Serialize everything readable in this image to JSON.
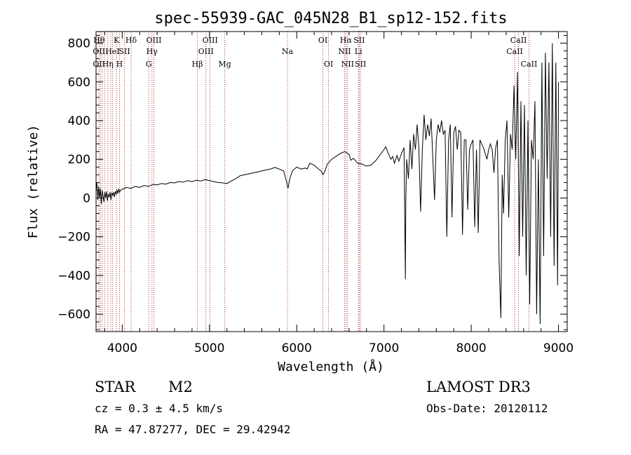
{
  "chart_data": {
    "type": "line",
    "title": "spec-55939-GAC_045N28_B1_sp12-152.fits",
    "xlabel": "Wavelength (Å)",
    "ylabel": "Flux (relative)",
    "xlim": [
      3700,
      9100
    ],
    "ylim": [
      -690,
      860
    ],
    "x_ticks": [
      4000,
      5000,
      6000,
      7000,
      8000,
      9000
    ],
    "x_tick_labels": [
      "4000",
      "5000",
      "6000",
      "7000",
      "8000",
      "9000"
    ],
    "y_ticks": [
      -600,
      -400,
      -200,
      0,
      200,
      400,
      600,
      800
    ],
    "y_tick_labels": [
      "−600",
      "−400",
      "−200",
      "0",
      "200",
      "400",
      "600",
      "800"
    ],
    "grid": false,
    "series": [
      {
        "points": [
          [
            3700,
            40
          ],
          [
            3710,
            80
          ],
          [
            3720,
            -10
          ],
          [
            3730,
            60
          ],
          [
            3740,
            0
          ],
          [
            3750,
            50
          ],
          [
            3760,
            -30
          ],
          [
            3770,
            40
          ],
          [
            3780,
            10
          ],
          [
            3790,
            -20
          ],
          [
            3800,
            30
          ],
          [
            3810,
            0
          ],
          [
            3820,
            35
          ],
          [
            3830,
            -15
          ],
          [
            3840,
            20
          ],
          [
            3850,
            5
          ],
          [
            3860,
            30
          ],
          [
            3870,
            -10
          ],
          [
            3880,
            25
          ],
          [
            3890,
            15
          ],
          [
            3900,
            30
          ],
          [
            3910,
            5
          ],
          [
            3920,
            35
          ],
          [
            3930,
            20
          ],
          [
            3940,
            40
          ],
          [
            3950,
            25
          ],
          [
            3960,
            45
          ],
          [
            3970,
            30
          ],
          [
            3980,
            40
          ],
          [
            4000,
            45
          ],
          [
            4050,
            55
          ],
          [
            4100,
            50
          ],
          [
            4150,
            60
          ],
          [
            4200,
            55
          ],
          [
            4250,
            65
          ],
          [
            4300,
            60
          ],
          [
            4350,
            70
          ],
          [
            4400,
            68
          ],
          [
            4450,
            75
          ],
          [
            4500,
            72
          ],
          [
            4550,
            80
          ],
          [
            4600,
            78
          ],
          [
            4650,
            85
          ],
          [
            4700,
            82
          ],
          [
            4750,
            90
          ],
          [
            4800,
            85
          ],
          [
            4850,
            92
          ],
          [
            4900,
            88
          ],
          [
            4950,
            95
          ],
          [
            5000,
            90
          ],
          [
            5050,
            85
          ],
          [
            5100,
            80
          ],
          [
            5150,
            78
          ],
          [
            5200,
            75
          ],
          [
            5250,
            88
          ],
          [
            5300,
            100
          ],
          [
            5350,
            115
          ],
          [
            5400,
            120
          ],
          [
            5450,
            125
          ],
          [
            5500,
            130
          ],
          [
            5550,
            135
          ],
          [
            5600,
            140
          ],
          [
            5650,
            145
          ],
          [
            5700,
            150
          ],
          [
            5750,
            158
          ],
          [
            5800,
            150
          ],
          [
            5850,
            140
          ],
          [
            5880,
            90
          ],
          [
            5900,
            50
          ],
          [
            5920,
            100
          ],
          [
            5950,
            140
          ],
          [
            6000,
            160
          ],
          [
            6050,
            150
          ],
          [
            6100,
            155
          ],
          [
            6120,
            150
          ],
          [
            6150,
            180
          ],
          [
            6200,
            170
          ],
          [
            6250,
            150
          ],
          [
            6280,
            140
          ],
          [
            6300,
            120
          ],
          [
            6320,
            135
          ],
          [
            6350,
            175
          ],
          [
            6400,
            200
          ],
          [
            6450,
            215
          ],
          [
            6500,
            230
          ],
          [
            6550,
            240
          ],
          [
            6600,
            225
          ],
          [
            6620,
            195
          ],
          [
            6650,
            205
          ],
          [
            6700,
            180
          ],
          [
            6750,
            175
          ],
          [
            6800,
            165
          ],
          [
            6850,
            170
          ],
          [
            6900,
            190
          ],
          [
            6950,
            220
          ],
          [
            7000,
            250
          ],
          [
            7020,
            265
          ],
          [
            7050,
            230
          ],
          [
            7080,
            200
          ],
          [
            7100,
            215
          ],
          [
            7120,
            180
          ],
          [
            7150,
            220
          ],
          [
            7170,
            190
          ],
          [
            7200,
            230
          ],
          [
            7230,
            260
          ],
          [
            7245,
            -420
          ],
          [
            7250,
            -10
          ],
          [
            7260,
            200
          ],
          [
            7280,
            100
          ],
          [
            7300,
            300
          ],
          [
            7320,
            150
          ],
          [
            7340,
            330
          ],
          [
            7360,
            250
          ],
          [
            7380,
            380
          ],
          [
            7400,
            260
          ],
          [
            7420,
            -70
          ],
          [
            7440,
            250
          ],
          [
            7460,
            430
          ],
          [
            7480,
            300
          ],
          [
            7500,
            380
          ],
          [
            7520,
            320
          ],
          [
            7540,
            410
          ],
          [
            7560,
            200
          ],
          [
            7580,
            -10
          ],
          [
            7600,
            300
          ],
          [
            7620,
            380
          ],
          [
            7640,
            340
          ],
          [
            7660,
            400
          ],
          [
            7680,
            330
          ],
          [
            7700,
            350
          ],
          [
            7720,
            -200
          ],
          [
            7740,
            300
          ],
          [
            7760,
            380
          ],
          [
            7780,
            -100
          ],
          [
            7800,
            340
          ],
          [
            7820,
            370
          ],
          [
            7840,
            250
          ],
          [
            7860,
            350
          ],
          [
            7880,
            340
          ],
          [
            7900,
            -190
          ],
          [
            7920,
            300
          ],
          [
            7940,
            300
          ],
          [
            7960,
            -60
          ],
          [
            7980,
            250
          ],
          [
            8000,
            280
          ],
          [
            8020,
            300
          ],
          [
            8040,
            -150
          ],
          [
            8060,
            250
          ],
          [
            8080,
            -180
          ],
          [
            8100,
            300
          ],
          [
            8120,
            280
          ],
          [
            8140,
            260
          ],
          [
            8160,
            230
          ],
          [
            8180,
            200
          ],
          [
            8200,
            250
          ],
          [
            8220,
            280
          ],
          [
            8240,
            250
          ],
          [
            8260,
            130
          ],
          [
            8280,
            260
          ],
          [
            8300,
            300
          ],
          [
            8320,
            -330
          ],
          [
            8340,
            -620
          ],
          [
            8355,
            120
          ],
          [
            8370,
            -80
          ],
          [
            8390,
            300
          ],
          [
            8410,
            400
          ],
          [
            8430,
            -100
          ],
          [
            8450,
            330
          ],
          [
            8470,
            250
          ],
          [
            8490,
            580
          ],
          [
            8510,
            200
          ],
          [
            8530,
            650
          ],
          [
            8550,
            -300
          ],
          [
            8570,
            500
          ],
          [
            8590,
            -200
          ],
          [
            8610,
            480
          ],
          [
            8630,
            -400
          ],
          [
            8650,
            400
          ],
          [
            8670,
            -550
          ],
          [
            8690,
            300
          ],
          [
            8710,
            200
          ],
          [
            8730,
            500
          ],
          [
            8750,
            -600
          ],
          [
            8770,
            200
          ],
          [
            8790,
            -650
          ],
          [
            8810,
            700
          ],
          [
            8830,
            -300
          ],
          [
            8850,
            750
          ],
          [
            8870,
            100
          ],
          [
            8890,
            700
          ],
          [
            8910,
            -200
          ],
          [
            8930,
            800
          ],
          [
            8950,
            -350
          ],
          [
            8970,
            700
          ],
          [
            8990,
            -450
          ],
          [
            9000,
            600
          ]
        ]
      }
    ],
    "lines": [
      {
        "x": 3734,
        "labels": [
          {
            "text": "Hθ",
            "row": 1
          },
          {
            "text": "OII",
            "row": 2
          },
          {
            "text": "OII",
            "row": 3
          }
        ]
      },
      {
        "x": 3750,
        "labels": []
      },
      {
        "x": 3771,
        "labels": []
      },
      {
        "x": 3798,
        "labels": []
      },
      {
        "x": 3835,
        "labels": [
          {
            "text": "Hη",
            "row": 3
          }
        ]
      },
      {
        "x": 3869,
        "labels": []
      },
      {
        "x": 3889,
        "labels": [
          {
            "text": "HeI",
            "row": 2
          }
        ]
      },
      {
        "x": 3934,
        "labels": [
          {
            "text": "K",
            "row": 1
          }
        ]
      },
      {
        "x": 3969,
        "labels": [
          {
            "text": "H",
            "row": 3
          }
        ]
      },
      {
        "x": 4026,
        "labels": [
          {
            "text": "SII",
            "row": 2
          }
        ]
      },
      {
        "x": 4102,
        "labels": [
          {
            "text": "Hδ",
            "row": 1
          }
        ]
      },
      {
        "x": 4304,
        "labels": [
          {
            "text": "G",
            "row": 3
          }
        ]
      },
      {
        "x": 4341,
        "labels": [
          {
            "text": "Hγ",
            "row": 2
          }
        ]
      },
      {
        "x": 4363,
        "labels": [
          {
            "text": "OIII",
            "row": 1
          }
        ]
      },
      {
        "x": 4861,
        "labels": [
          {
            "text": "Hβ",
            "row": 3
          }
        ]
      },
      {
        "x": 4959,
        "labels": [
          {
            "text": "OIII",
            "row": 2
          }
        ]
      },
      {
        "x": 5007,
        "labels": [
          {
            "text": "OIII",
            "row": 1
          }
        ]
      },
      {
        "x": 5175,
        "labels": [
          {
            "text": "Mg",
            "row": 3
          }
        ]
      },
      {
        "x": 5894,
        "labels": [
          {
            "text": "Na",
            "row": 2
          }
        ]
      },
      {
        "x": 6300,
        "labels": [
          {
            "text": "OI",
            "row": 1
          }
        ]
      },
      {
        "x": 6364,
        "labels": [
          {
            "text": "OI",
            "row": 3
          }
        ]
      },
      {
        "x": 6548,
        "labels": [
          {
            "text": "NII",
            "row": 2
          }
        ]
      },
      {
        "x": 6563,
        "labels": [
          {
            "text": "Hα",
            "row": 1
          }
        ]
      },
      {
        "x": 6583,
        "labels": [
          {
            "text": "NII",
            "row": 3
          }
        ]
      },
      {
        "x": 6707,
        "labels": [
          {
            "text": "Li",
            "row": 2
          }
        ]
      },
      {
        "x": 6716,
        "labels": [
          {
            "text": "SII",
            "row": 1
          }
        ]
      },
      {
        "x": 6731,
        "labels": [
          {
            "text": "SII",
            "row": 3
          }
        ]
      },
      {
        "x": 8498,
        "labels": [
          {
            "text": "CaII",
            "row": 2
          }
        ]
      },
      {
        "x": 8542,
        "labels": [
          {
            "text": "CaII",
            "row": 1
          }
        ]
      },
      {
        "x": 8662,
        "labels": [
          {
            "text": "CaII",
            "row": 3
          }
        ]
      }
    ]
  },
  "info": {
    "class": "STAR",
    "subclass": "M2",
    "survey": "LAMOST DR3",
    "cz": "cz = 0.3 ± 4.5 km/s",
    "obs_date": "Obs-Date: 20120112",
    "radec": "RA =  47.87277, DEC =  29.42942"
  },
  "colors": {
    "line_marker": "#a00000",
    "spectrum": "#000000",
    "axis": "#000000"
  }
}
